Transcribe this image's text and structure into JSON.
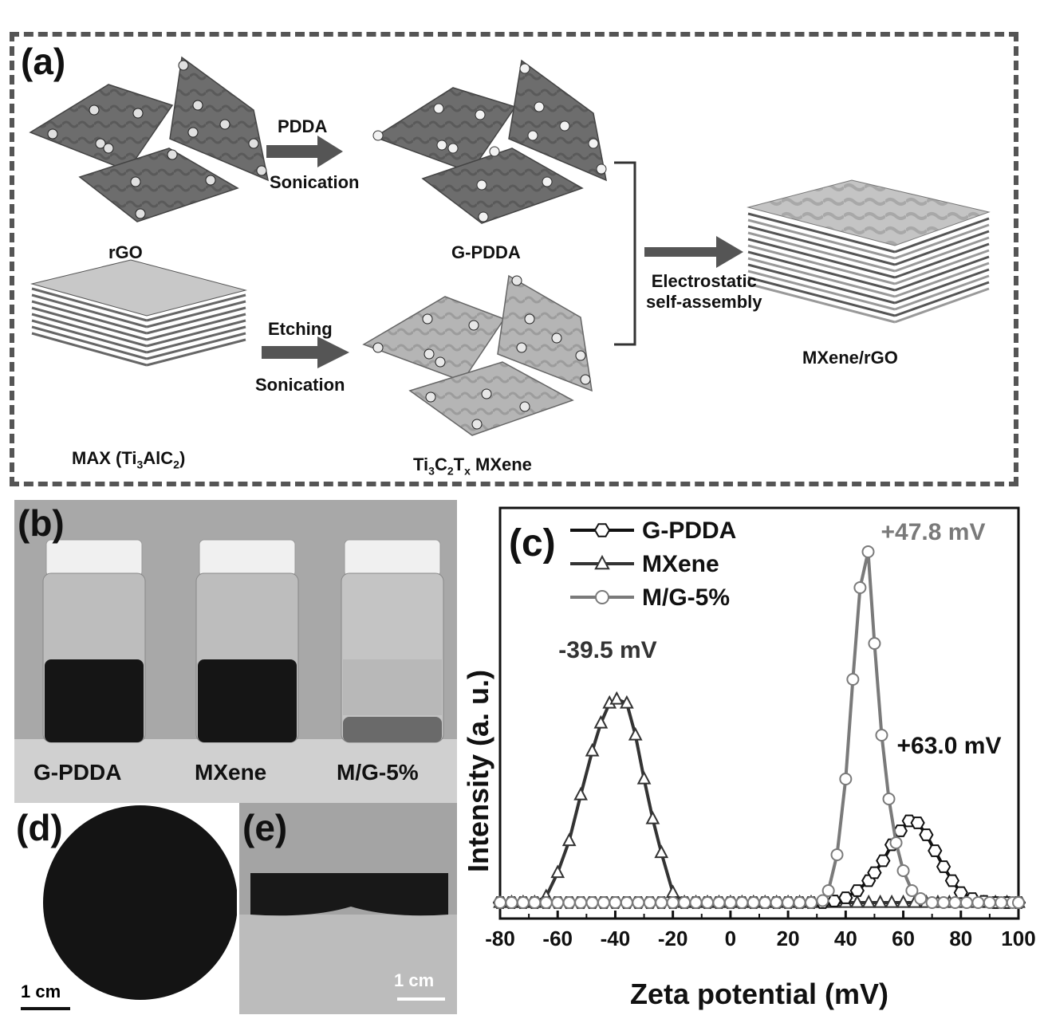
{
  "panel_a": {
    "letter": "(a)",
    "rgo_label": "rGO",
    "gpdda_label": "G-PDDA",
    "max_label_pre": "MAX (Ti",
    "max_sub1": "3",
    "max_mid": "AlC",
    "max_sub2": "2",
    "max_post": ")",
    "mxene_pre": "Ti",
    "mxene_sub1": "3",
    "mxene_mid": "C",
    "mxene_sub2": "2",
    "mxene_mid2": "T",
    "mxene_sub3": "x",
    "mxene_post": " MXene",
    "arrow1_top": "PDDA",
    "arrow1_bottom": "Sonication",
    "arrow2_top": "Etching",
    "arrow2_bottom": "Sonication",
    "assembly_line1": "Electrostatic",
    "assembly_line2": "self-assembly",
    "product_label": "MXene/rGO"
  },
  "panel_b": {
    "letter": "(b)",
    "vials": [
      "G-PDDA",
      "MXene",
      "M/G-5%"
    ]
  },
  "panel_d": {
    "letter": "(d)",
    "scale": "1 cm"
  },
  "panel_e": {
    "letter": "(e)",
    "scale": "1 cm"
  },
  "panel_c": {
    "letter": "(c)"
  },
  "chart_data": {
    "type": "line",
    "xlabel": "Zeta potential (mV)",
    "ylabel": "Intensity (a. u.)",
    "xlim": [
      -80,
      100
    ],
    "xticks": [
      -80,
      -60,
      -40,
      -20,
      0,
      20,
      40,
      60,
      80,
      100
    ],
    "series": [
      {
        "name": "G-PDDA",
        "color": "#111111",
        "marker": "hexagon",
        "x": [
          -80,
          -76,
          -72,
          -68,
          -64,
          -60,
          -56,
          -52,
          -48,
          -44,
          -40,
          -36,
          -32,
          -28,
          -24,
          -20,
          -16,
          -12,
          -8,
          -4,
          0,
          4,
          8,
          12,
          16,
          20,
          24,
          28,
          32,
          36,
          40,
          44,
          48,
          50,
          53,
          56,
          59,
          62,
          65,
          68,
          71,
          74,
          77,
          80,
          84,
          88,
          92,
          96,
          100
        ],
        "y": [
          0,
          0,
          0,
          0,
          0,
          0,
          0,
          0,
          0,
          0,
          0,
          0,
          0,
          0,
          0,
          0,
          0,
          0,
          0,
          0,
          0,
          0,
          0,
          0,
          0,
          0,
          0,
          0,
          0,
          0.4,
          1.2,
          3,
          5.5,
          7.5,
          10.5,
          14.5,
          18,
          20.5,
          20,
          17,
          13,
          9,
          5.5,
          2.5,
          1,
          0.3,
          0,
          0,
          0
        ]
      },
      {
        "name": "MXene",
        "color": "#333333",
        "marker": "triangle",
        "x": [
          -80,
          -76,
          -72,
          -68,
          -64,
          -60,
          -56,
          -52,
          -48,
          -45,
          -42,
          -39.5,
          -36,
          -33,
          -30,
          -27,
          -24,
          -20,
          -16,
          -12,
          -8,
          -4,
          0,
          4,
          8,
          12,
          16,
          20,
          24,
          28,
          32,
          36,
          40,
          44,
          48,
          52,
          56,
          60,
          64,
          68,
          72,
          76,
          80,
          84,
          88,
          92,
          96,
          100
        ],
        "y": [
          0,
          0,
          0,
          0,
          1.5,
          7.5,
          15.5,
          27,
          38,
          45,
          50,
          51,
          50,
          42,
          31,
          21,
          12.5,
          2.5,
          0,
          0,
          0,
          0,
          0,
          0,
          0,
          0,
          0,
          0,
          0,
          0,
          0,
          0,
          0,
          0,
          0,
          0,
          0,
          0,
          0,
          0,
          0,
          0,
          0,
          0,
          0,
          0,
          0,
          0
        ]
      },
      {
        "name": "M/G-5%",
        "color": "#7a7a7a",
        "marker": "circle",
        "x": [
          -80,
          -76,
          -72,
          -68,
          -64,
          -60,
          -56,
          -52,
          -48,
          -44,
          -40,
          -36,
          -32,
          -28,
          -24,
          -20,
          -16,
          -12,
          -8,
          -4,
          0,
          4,
          8,
          12,
          16,
          20,
          24,
          28,
          32,
          34,
          37,
          40,
          42.5,
          45,
          47.8,
          50,
          52.5,
          55,
          57.5,
          60,
          63,
          66,
          70,
          74,
          78,
          82,
          86,
          90,
          94,
          98,
          100
        ],
        "y": [
          0,
          0,
          0,
          0,
          0,
          0,
          0,
          0,
          0,
          0,
          0,
          0,
          0,
          0,
          0,
          0,
          0,
          0,
          0,
          0,
          0,
          0,
          0,
          0,
          0,
          0,
          0,
          0,
          0.5,
          3,
          12,
          31,
          56,
          79,
          88,
          65,
          42,
          26,
          15,
          8,
          3,
          1,
          0,
          0,
          0,
          0,
          0,
          0,
          0,
          0,
          0
        ]
      }
    ],
    "annotations": [
      {
        "text": "-39.5 mV",
        "x": -39.5,
        "color": "#333333"
      },
      {
        "text": "+47.8 mV",
        "x": 47.8,
        "color": "#7a7a7a"
      },
      {
        "text": "+63.0 mV",
        "x": 63.0,
        "color": "#111111"
      }
    ],
    "legend": "top-left",
    "grid": false
  }
}
